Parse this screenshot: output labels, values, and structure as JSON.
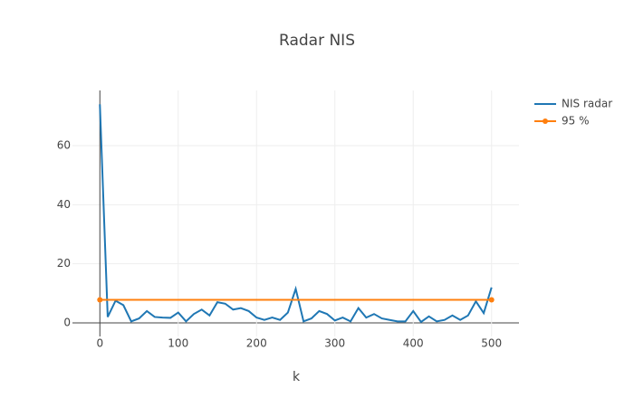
{
  "chart_data": {
    "type": "line",
    "title": "Radar NIS",
    "x_label": "k",
    "xlim": [
      -35,
      535
    ],
    "xticks": [
      0,
      100,
      200,
      300,
      400,
      500
    ],
    "ylim": [
      -4.6,
      78.7
    ],
    "yticks": [
      0,
      20,
      40,
      60
    ],
    "grid": true,
    "legend": "top-right",
    "series": [
      {
        "name": "NIS radar",
        "color": "#1f77b4",
        "markers": false,
        "x": [
          0,
          10,
          20,
          30,
          40,
          50,
          60,
          70,
          80,
          90,
          100,
          110,
          120,
          130,
          140,
          150,
          160,
          170,
          180,
          190,
          200,
          210,
          220,
          230,
          240,
          250,
          260,
          270,
          280,
          290,
          300,
          310,
          320,
          330,
          340,
          350,
          360,
          370,
          380,
          390,
          400,
          410,
          420,
          430,
          440,
          450,
          460,
          470,
          480,
          490,
          500
        ],
        "values": [
          74,
          2,
          7.5,
          6,
          0.5,
          1.5,
          4,
          2,
          1.8,
          1.7,
          3.5,
          0.5,
          3,
          4.5,
          2.5,
          7,
          6.5,
          4.5,
          5,
          4,
          1.8,
          1,
          1.8,
          1,
          3.5,
          11.5,
          0.5,
          1.5,
          4,
          3,
          0.8,
          1.8,
          0.5,
          5,
          1.8,
          3,
          1.5,
          1,
          0.5,
          0.5,
          4,
          0.3,
          2.2,
          0.5,
          1,
          2.5,
          1,
          2.5,
          7.3,
          3.3,
          12
        ]
      },
      {
        "name": "95 %",
        "color": "#ff7f0e",
        "markers": true,
        "x": [
          0,
          500
        ],
        "values": [
          7.815,
          7.815
        ]
      }
    ]
  }
}
